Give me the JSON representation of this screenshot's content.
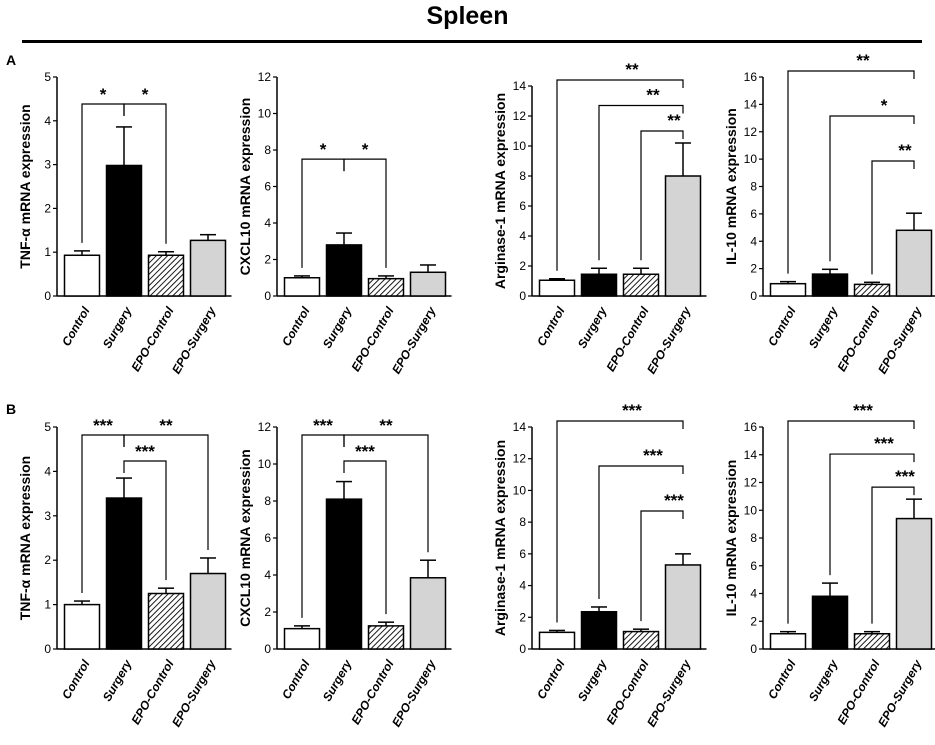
{
  "title": "Spleen",
  "panels": [
    {
      "letter": "A"
    },
    {
      "letter": "B"
    }
  ],
  "colors": {
    "Control": "#ffffff",
    "Surgery": "#000000",
    "EPO-Control": "hatch",
    "EPO-Surgery": "#d4d4d4"
  },
  "chart_data": [
    {
      "type": "bar",
      "panel": "A",
      "ylabel": "TNF-α  mRNA expression",
      "categories": [
        "Control",
        "Surgery",
        "EPO-Control",
        "EPO-Surgery"
      ],
      "values": [
        0.93,
        2.98,
        0.93,
        1.27
      ],
      "errors": [
        0.1,
        0.88,
        0.08,
        0.13
      ],
      "ylim": [
        0,
        5
      ],
      "yticks": [
        0,
        1,
        2,
        3,
        4,
        5
      ],
      "significance": [
        {
          "from": 0,
          "to": 1,
          "label": "*"
        },
        {
          "from": 1,
          "to": 2,
          "label": "*"
        }
      ]
    },
    {
      "type": "bar",
      "panel": "A",
      "ylabel": "CXCL10 mRNA expression",
      "categories": [
        "Control",
        "Surgery",
        "EPO-Control",
        "EPO-Surgery"
      ],
      "values": [
        1.0,
        2.8,
        0.95,
        1.3
      ],
      "errors": [
        0.1,
        0.65,
        0.15,
        0.4
      ],
      "ylim": [
        0,
        12
      ],
      "yticks": [
        0,
        2,
        4,
        6,
        8,
        10,
        12
      ],
      "significance": [
        {
          "from": 0,
          "to": 1,
          "label": "*"
        },
        {
          "from": 1,
          "to": 2,
          "label": "*"
        }
      ]
    },
    {
      "type": "bar",
      "panel": "A",
      "ylabel": "Arginase-1 mRNA expression",
      "categories": [
        "Control",
        "Surgery",
        "EPO-Control",
        "EPO-Surgery"
      ],
      "values": [
        1.05,
        1.45,
        1.45,
        8.0
      ],
      "errors": [
        0.1,
        0.4,
        0.4,
        2.2
      ],
      "ylim": [
        0,
        14
      ],
      "yticks": [
        0,
        2,
        4,
        6,
        8,
        10,
        12,
        14
      ],
      "significance": [
        {
          "from": 0,
          "to": 3,
          "label": "**"
        },
        {
          "from": 1,
          "to": 3,
          "label": "**"
        },
        {
          "from": 2,
          "to": 3,
          "label": "**"
        }
      ]
    },
    {
      "type": "bar",
      "panel": "A",
      "ylabel": "IL-10 mRNA expression",
      "categories": [
        "Control",
        "Surgery",
        "EPO-Control",
        "EPO-Surgery"
      ],
      "values": [
        0.9,
        1.6,
        0.85,
        4.8
      ],
      "errors": [
        0.15,
        0.35,
        0.15,
        1.25
      ],
      "ylim": [
        0,
        16
      ],
      "yticks": [
        0,
        2,
        4,
        6,
        8,
        10,
        12,
        14,
        16
      ],
      "significance": [
        {
          "from": 0,
          "to": 3,
          "label": "**"
        },
        {
          "from": 1,
          "to": 3,
          "label": "*"
        },
        {
          "from": 2,
          "to": 3,
          "label": "**"
        }
      ]
    },
    {
      "type": "bar",
      "panel": "B",
      "ylabel": "TNF-α  mRNA expression",
      "categories": [
        "Control",
        "Surgery",
        "EPO-Control",
        "EPO-Surgery"
      ],
      "values": [
        1.0,
        3.4,
        1.25,
        1.7
      ],
      "errors": [
        0.08,
        0.45,
        0.12,
        0.35
      ],
      "ylim": [
        0,
        5
      ],
      "yticks": [
        0,
        1,
        2,
        3,
        4,
        5
      ],
      "significance": [
        {
          "from": 0,
          "to": 1,
          "label": "***"
        },
        {
          "from": 1,
          "to": 2,
          "label": "***"
        },
        {
          "from": 1,
          "to": 3,
          "label": "**"
        }
      ]
    },
    {
      "type": "bar",
      "panel": "B",
      "ylabel": "CXCL10 mRNA expression",
      "categories": [
        "Control",
        "Surgery",
        "EPO-Control",
        "EPO-Surgery"
      ],
      "values": [
        1.1,
        8.1,
        1.25,
        3.85
      ],
      "errors": [
        0.15,
        0.95,
        0.2,
        0.95
      ],
      "ylim": [
        0,
        12
      ],
      "yticks": [
        0,
        2,
        4,
        6,
        8,
        10,
        12
      ],
      "significance": [
        {
          "from": 0,
          "to": 1,
          "label": "***"
        },
        {
          "from": 1,
          "to": 2,
          "label": "***"
        },
        {
          "from": 1,
          "to": 3,
          "label": "**"
        }
      ]
    },
    {
      "type": "bar",
      "panel": "B",
      "ylabel": "Arginase-1 mRNA expression",
      "categories": [
        "Control",
        "Surgery",
        "EPO-Control",
        "EPO-Surgery"
      ],
      "values": [
        1.05,
        2.35,
        1.1,
        5.3
      ],
      "errors": [
        0.12,
        0.3,
        0.15,
        0.7
      ],
      "ylim": [
        0,
        14
      ],
      "yticks": [
        0,
        2,
        4,
        6,
        8,
        10,
        12,
        14
      ],
      "significance": [
        {
          "from": 0,
          "to": 3,
          "label": "***"
        },
        {
          "from": 1,
          "to": 3,
          "label": "***"
        },
        {
          "from": 2,
          "to": 3,
          "label": "***"
        }
      ]
    },
    {
      "type": "bar",
      "panel": "B",
      "ylabel": "IL-10 mRNA expression",
      "categories": [
        "Control",
        "Surgery",
        "EPO-Control",
        "EPO-Surgery"
      ],
      "values": [
        1.1,
        3.8,
        1.1,
        9.4
      ],
      "errors": [
        0.15,
        0.95,
        0.15,
        1.4
      ],
      "ylim": [
        0,
        16
      ],
      "yticks": [
        0,
        2,
        4,
        6,
        8,
        10,
        12,
        14,
        16
      ],
      "significance": [
        {
          "from": 0,
          "to": 3,
          "label": "***"
        },
        {
          "from": 1,
          "to": 3,
          "label": "***"
        },
        {
          "from": 2,
          "to": 3,
          "label": "***"
        }
      ]
    }
  ]
}
